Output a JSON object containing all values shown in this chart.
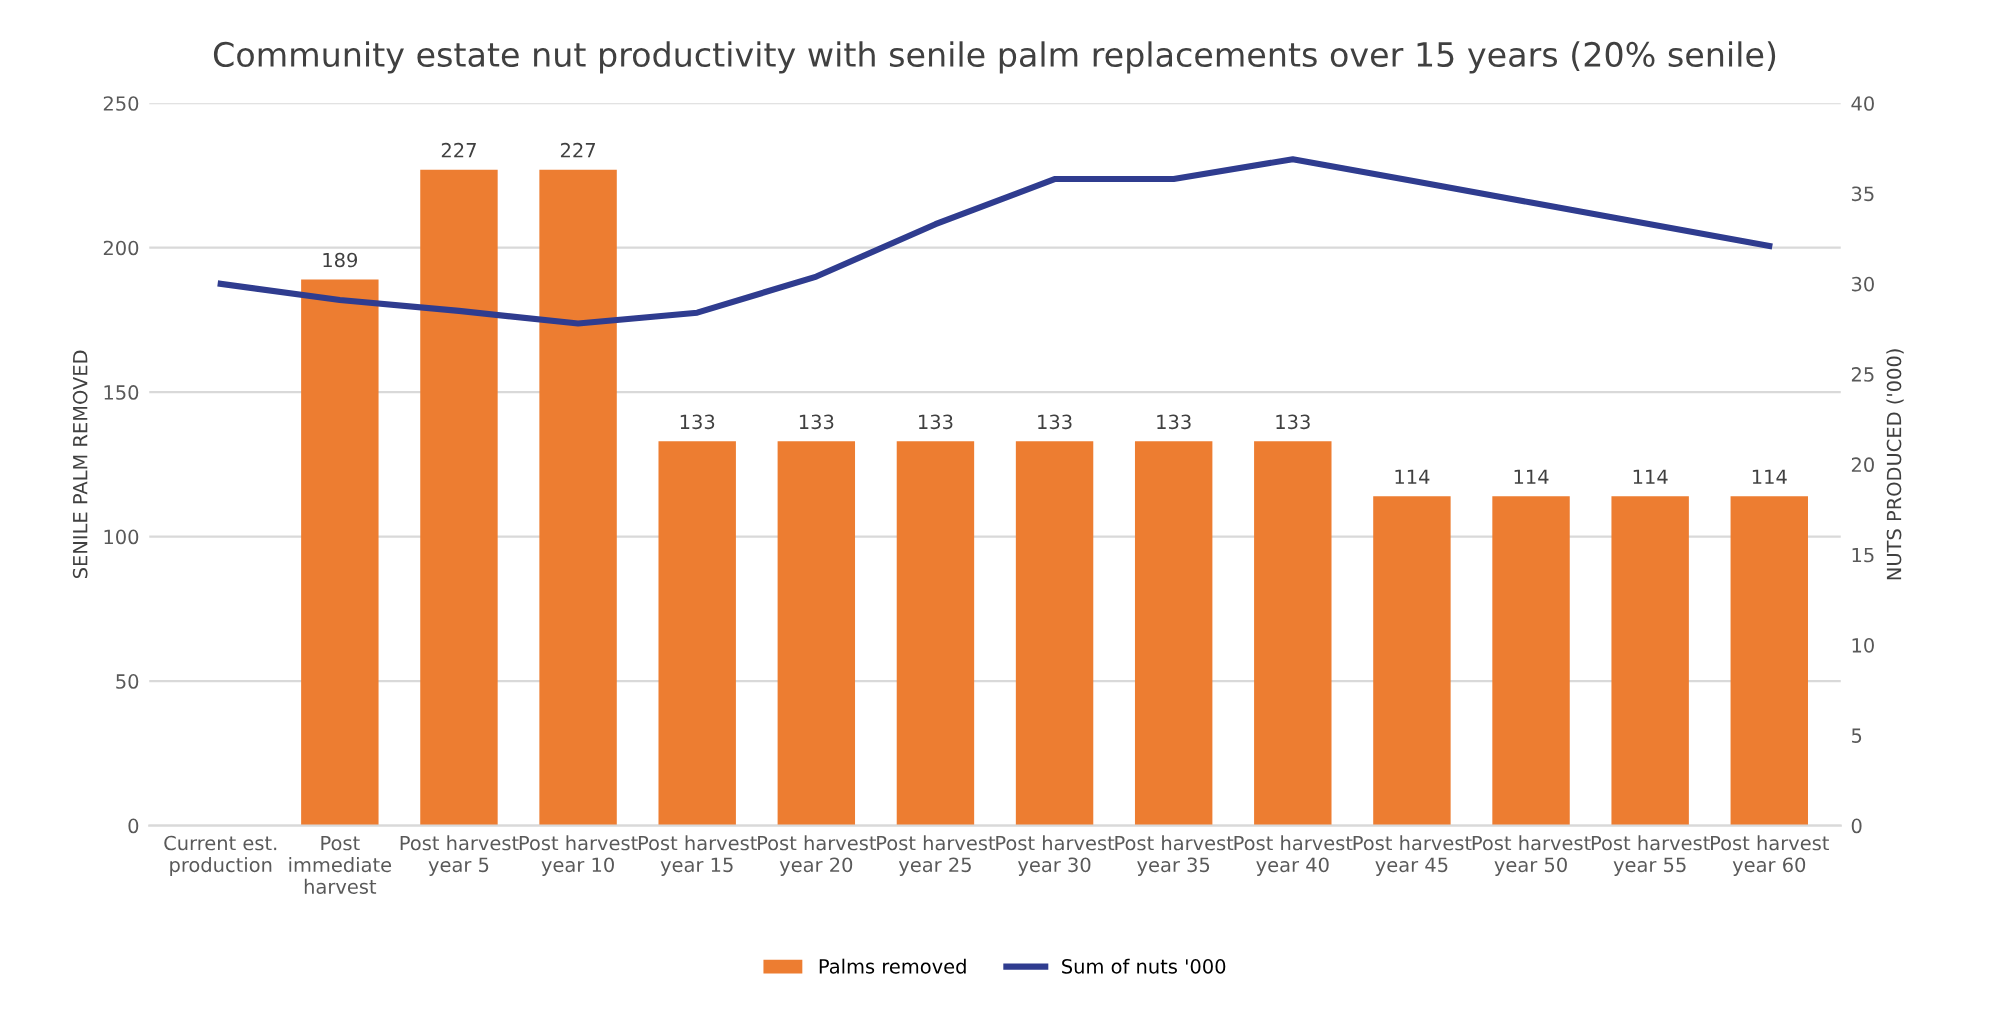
{
  "chart_data": {
    "type": "bar",
    "title": "Community estate nut productivity with senile palm replacements over 15 years (20% senile)",
    "categories": [
      "Current est. production",
      "Post immediate harvest",
      "Post harvest year 5",
      "Post harvest year 10",
      "Post harvest year 15",
      "Post harvest year 20",
      "Post harvest year 25",
      "Post harvest year 30",
      "Post harvest year 35",
      "Post harvest year 40",
      "Post harvest year 45",
      "Post harvest year 50",
      "Post harvest year 55",
      "Post harvest year 60"
    ],
    "series": [
      {
        "name": "Palms removed",
        "color": "#ed7d31",
        "values": [
          null,
          189,
          227,
          227,
          133,
          133,
          133,
          133,
          133,
          133,
          114,
          114,
          114,
          114
        ],
        "value_labels": [
          null,
          "189",
          "227",
          "227",
          "133",
          "133",
          "133",
          "133",
          "133",
          "133",
          "114",
          "114",
          "114",
          "114"
        ]
      },
      {
        "name": "Sum of nuts '000",
        "type": "line",
        "axis": "y2",
        "color": "#2f3c8f",
        "values": [
          30.0,
          29.1,
          28.5,
          27.8,
          28.4,
          30.4,
          33.3,
          35.8,
          35.8,
          36.9,
          35.7,
          34.5,
          33.3,
          32.1
        ]
      }
    ],
    "ylabel": "SENILE PALM REMOVED",
    "y2label": "NUTS PRODUCED ('000)",
    "ylim": [
      0,
      250
    ],
    "yticks": [
      0,
      50,
      100,
      150,
      200,
      250
    ],
    "y2lim": [
      0,
      40
    ],
    "y2ticks": [
      0,
      5,
      10,
      15,
      20,
      25,
      30,
      35,
      40
    ],
    "grid": "y",
    "legend": "bottom"
  }
}
